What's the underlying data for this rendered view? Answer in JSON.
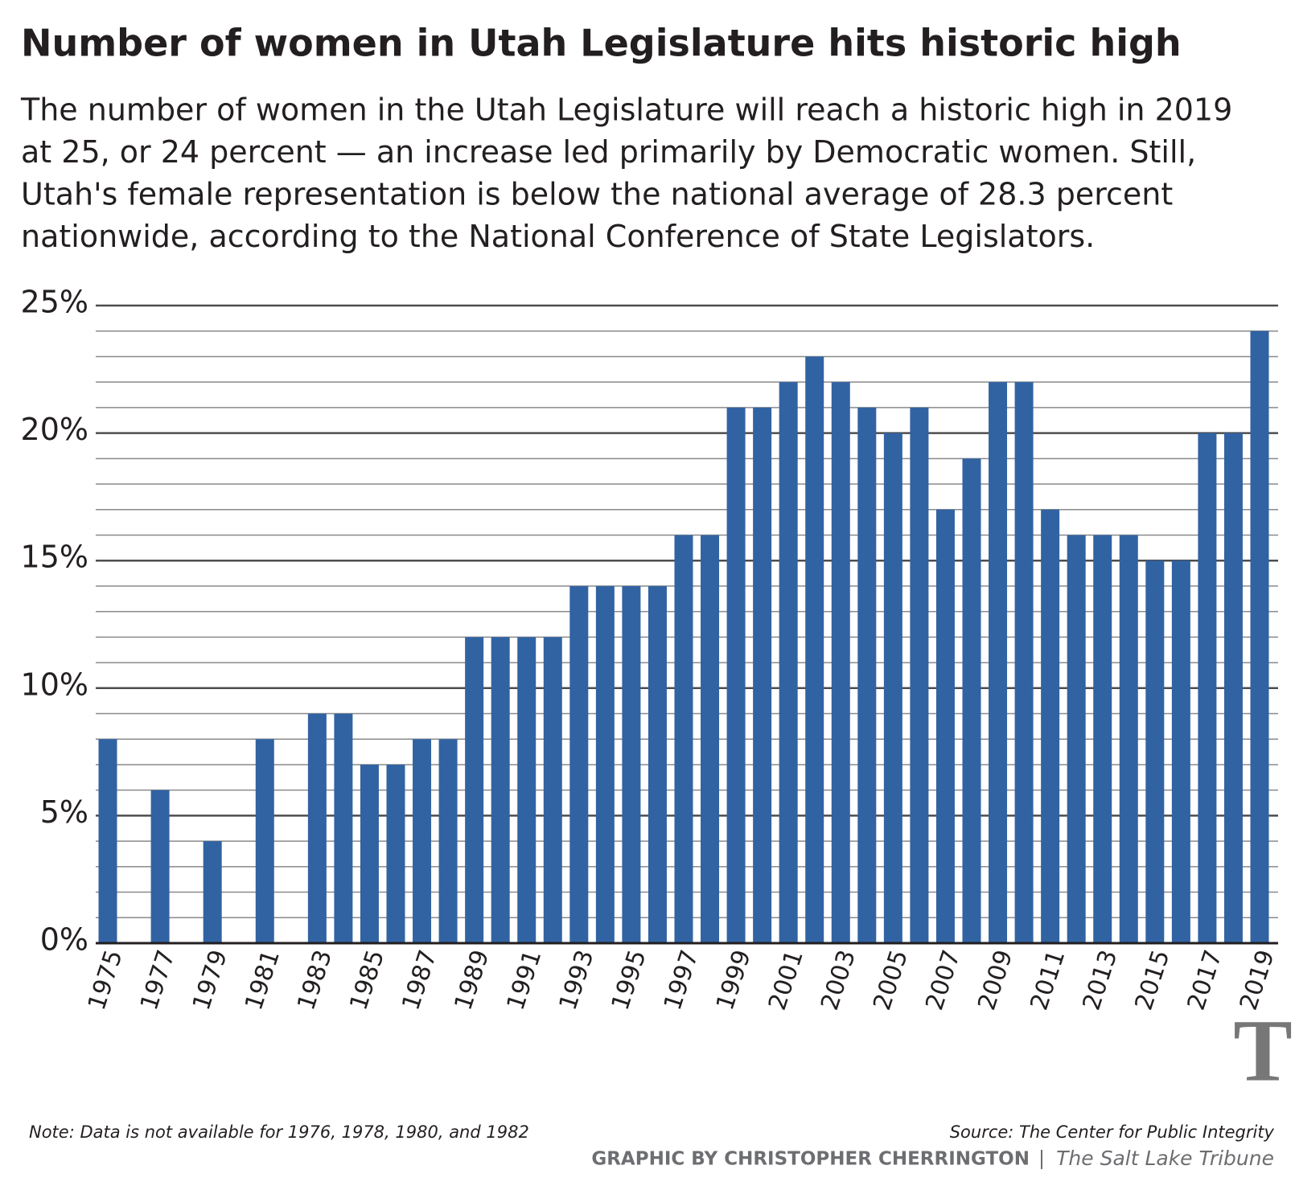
{
  "chart_data": {
    "type": "bar",
    "title": "Number of women in Utah Legislature hits historic high",
    "subtitle": [
      "The number of women in the Utah Legislature will reach a historic high in 2019",
      "at 25, or 24 percent — an increase led primarily by Democratic women. Still,",
      "Utah's female representation is below the national average of 28.3 percent",
      "nationwide, according to the National Conference of State Legislators."
    ],
    "categories": [
      "1975",
      null,
      "1977",
      null,
      "1979",
      null,
      "1981",
      null,
      "1983",
      null,
      "1985",
      null,
      "1987",
      null,
      "1989",
      null,
      "1991",
      null,
      "1993",
      null,
      "1995",
      null,
      "1997",
      null,
      "1999",
      null,
      "2001",
      null,
      "2003",
      null,
      "2005",
      null,
      "2007",
      null,
      "2009",
      null,
      "2011",
      null,
      "2013",
      null,
      "2015",
      null,
      "2017",
      null,
      "2019"
    ],
    "values": [
      8,
      null,
      6,
      null,
      4,
      null,
      8,
      null,
      9,
      9,
      7,
      7,
      8,
      8,
      12,
      12,
      12,
      12,
      14,
      14,
      14,
      14,
      16,
      16,
      21,
      21,
      22,
      23,
      22,
      21,
      20,
      21,
      17,
      19,
      22,
      22,
      17,
      16,
      16,
      16,
      15,
      15,
      20,
      20,
      24
    ],
    "color": "#3163a3",
    "ylim": [
      0,
      25
    ],
    "yticks": [
      {
        "value": 0,
        "label": "0%"
      },
      {
        "value": 5,
        "label": "5%"
      },
      {
        "value": 10,
        "label": "10%"
      },
      {
        "value": 15,
        "label": "15%"
      },
      {
        "value": 20,
        "label": "20%"
      },
      {
        "value": 25,
        "label": "25%"
      }
    ],
    "minor_yticks": [
      1,
      2,
      3,
      4,
      6,
      7,
      8,
      9,
      11,
      12,
      13,
      14,
      16,
      17,
      18,
      19,
      21,
      22,
      23,
      24
    ],
    "grid": true,
    "note": "Note: Data is not available for 1976, 1978, 1980, and 1982",
    "source": "Source: The Center for Public Integrity",
    "credit": "GRAPHIC BY CHRISTOPHER CHERRINGTON",
    "publication": "The Salt Lake Tribune",
    "logo": "T"
  }
}
